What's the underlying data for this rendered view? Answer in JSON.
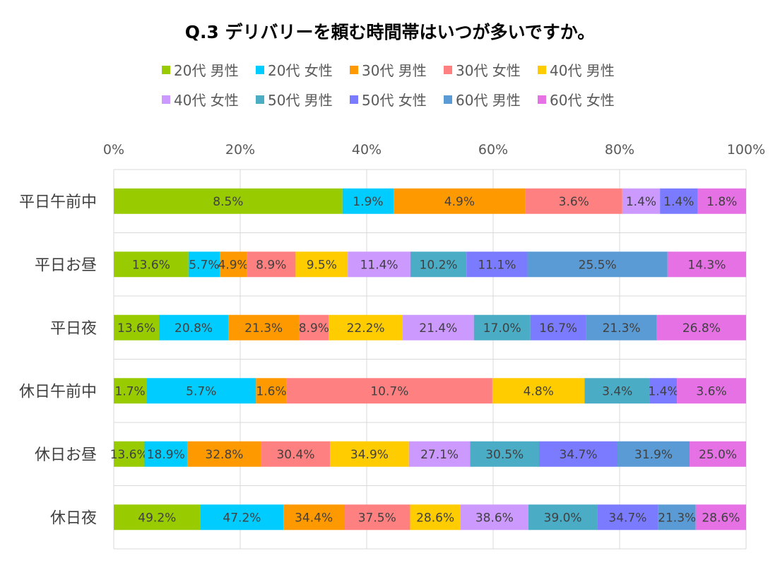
{
  "chart_data": {
    "type": "bar",
    "orientation": "horizontal",
    "stacked": "percent",
    "title": "Q.3 デリバリーを頼む時間帯はいつが多いですか。",
    "categories": [
      "平日午前中",
      "平日お昼",
      "平日夜",
      "休日午前中",
      "休日お昼",
      "休日夜"
    ],
    "xlim": [
      0,
      100
    ],
    "x_ticks": [
      "0%",
      "20%",
      "40%",
      "60%",
      "80%",
      "100%"
    ],
    "grid": true,
    "legend_position": "top",
    "series": [
      {
        "name": "20代 男性",
        "color": "#99CC00",
        "values": [
          8.5,
          13.6,
          13.6,
          1.7,
          13.6,
          49.2
        ],
        "labels": [
          "8.5%",
          "13.6%",
          "13.6%",
          "1.7%",
          "13.6%",
          "49.2%"
        ]
      },
      {
        "name": "20代 女性",
        "color": "#00CCFF",
        "values": [
          1.9,
          5.7,
          20.8,
          5.7,
          18.9,
          47.2
        ],
        "labels": [
          "1.9%",
          "5.7%",
          "20.8%",
          "5.7%",
          "18.9%",
          "47.2%"
        ]
      },
      {
        "name": "30代 男性",
        "color": "#FF9900",
        "values": [
          4.9,
          4.9,
          21.3,
          1.6,
          32.8,
          34.4
        ],
        "labels": [
          "4.9%",
          "4.9%",
          "21.3%",
          "1.6%",
          "32.8%",
          "34.4%"
        ]
      },
      {
        "name": "30代 女性",
        "color": "#FF8080",
        "values": [
          3.6,
          8.9,
          8.9,
          10.7,
          30.4,
          37.5
        ],
        "labels": [
          "3.6%",
          "8.9%",
          "8.9%",
          "10.7%",
          "30.4%",
          "37.5%"
        ]
      },
      {
        "name": "40代 男性",
        "color": "#FFCC00",
        "values": [
          0,
          9.5,
          22.2,
          4.8,
          34.9,
          28.6
        ],
        "labels": [
          "",
          "9.5%",
          "22.2%",
          "4.8%",
          "34.9%",
          "28.6%"
        ]
      },
      {
        "name": "40代 女性",
        "color": "#CC99FF",
        "values": [
          1.4,
          11.4,
          21.4,
          0,
          27.1,
          38.6
        ],
        "labels": [
          "1.4%",
          "11.4%",
          "21.4%",
          "",
          "27.1%",
          "38.6%"
        ]
      },
      {
        "name": "50代 男性",
        "color": "#4BACC6",
        "values": [
          0,
          10.2,
          17.0,
          3.4,
          30.5,
          39.0
        ],
        "labels": [
          "",
          "10.2%",
          "17.0%",
          "3.4%",
          "30.5%",
          "39.0%"
        ]
      },
      {
        "name": "50代 女性",
        "color": "#7B7BFF",
        "values": [
          1.4,
          11.1,
          16.7,
          1.4,
          34.7,
          34.7
        ],
        "labels": [
          "1.4%",
          "11.1%",
          "16.7%",
          "1.4%",
          "34.7%",
          "34.7%"
        ]
      },
      {
        "name": "60代 男性",
        "color": "#5B9BD5",
        "values": [
          0,
          25.5,
          21.3,
          0,
          31.9,
          21.3
        ],
        "labels": [
          "",
          "25.5%",
          "21.3%",
          "",
          "31.9%",
          "21.3%"
        ]
      },
      {
        "name": "60代 女性",
        "color": "#E571E5",
        "values": [
          1.8,
          14.3,
          26.8,
          3.6,
          25.0,
          28.6
        ],
        "labels": [
          "1.8%",
          "14.3%",
          "26.8%",
          "3.6%",
          "25.0%",
          "28.6%"
        ]
      }
    ]
  }
}
